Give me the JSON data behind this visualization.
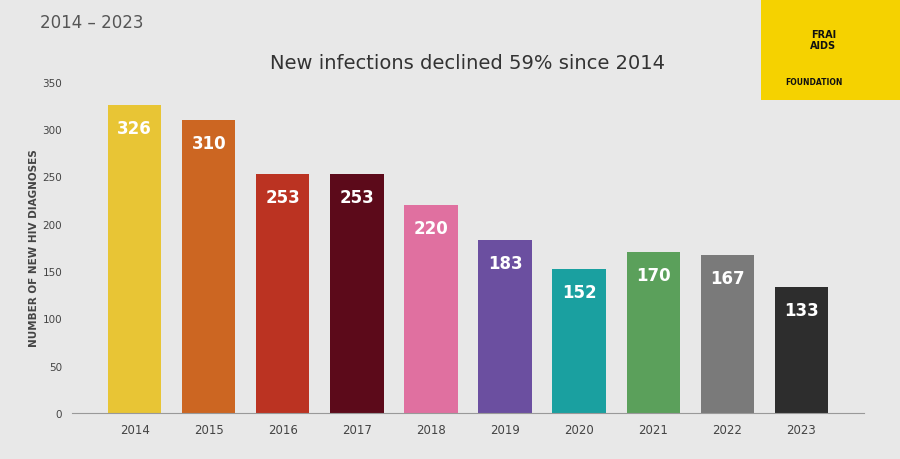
{
  "years": [
    "2014",
    "2015",
    "2016",
    "2017",
    "2018",
    "2019",
    "2020",
    "2021",
    "2022",
    "2023"
  ],
  "values": [
    326,
    310,
    253,
    253,
    220,
    183,
    152,
    170,
    167,
    133
  ],
  "bar_colors": [
    "#E8C535",
    "#CC6622",
    "#BB3322",
    "#5C0A1A",
    "#E070A0",
    "#6B4FA0",
    "#1AA0A0",
    "#5BA05B",
    "#7A7A7A",
    "#2D2D2D"
  ],
  "title": "New infections declined 59% since 2014",
  "ylabel": "NUMBER OF NEW HIV DIAGNOSES",
  "ylim": [
    0,
    350
  ],
  "yticks": [
    0,
    50,
    100,
    150,
    200,
    250,
    300,
    350
  ],
  "background_color": "#E8E8E8",
  "label_color": "#FFFFFF",
  "title_fontsize": 14,
  "label_fontsize": 12,
  "ylabel_fontsize": 7.5,
  "xlabel_fontsize": 8.5,
  "header_text": "2014 – 2023"
}
